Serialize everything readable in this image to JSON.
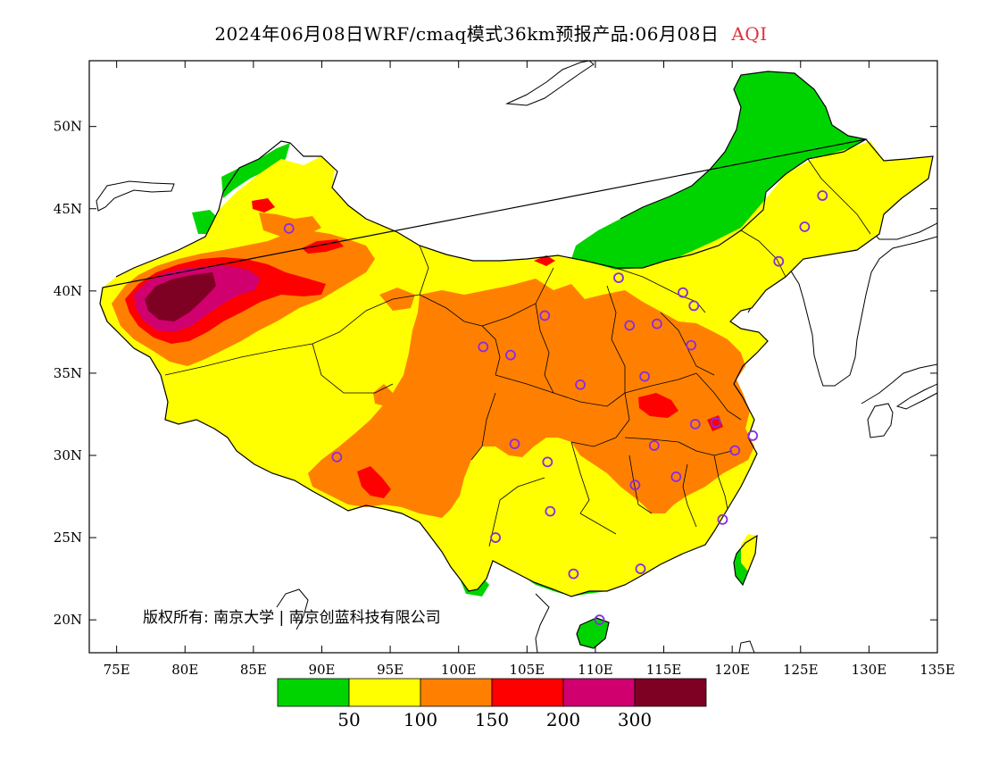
{
  "title": {
    "main": "2024年06月08日WRF/cmaq模式36km预报产品:06月08日",
    "variable": "AQI"
  },
  "copyright": "版权所有: 南京大学 | 南京创蓝科技有限公司",
  "axes": {
    "lon_ticks": [
      "75E",
      "80E",
      "85E",
      "90E",
      "95E",
      "100E",
      "105E",
      "110E",
      "115E",
      "120E",
      "125E",
      "130E",
      "135E"
    ],
    "lon_values": [
      75,
      80,
      85,
      90,
      95,
      100,
      105,
      110,
      115,
      120,
      125,
      130,
      135
    ],
    "lat_ticks": [
      "20N",
      "25N",
      "30N",
      "35N",
      "40N",
      "45N",
      "50N"
    ],
    "lat_values": [
      20,
      25,
      30,
      35,
      40,
      45,
      50
    ],
    "lon_range": [
      73,
      135
    ],
    "lat_range": [
      18,
      54
    ]
  },
  "legend": {
    "labels": [
      "50",
      "100",
      "150",
      "200",
      "300"
    ],
    "colors": [
      "#00d400",
      "#ffff00",
      "#ff8000",
      "#ff0000",
      "#d0006e",
      "#7e0023"
    ]
  },
  "colors": {
    "good": "#00d400",
    "moderate": "#ffff00",
    "usg": "#ff8000",
    "unhealthy": "#ff0000",
    "very_unhealthy": "#d0006e",
    "hazardous": "#7e0023",
    "marker": "#8a2be2"
  },
  "stations": [
    [
      87.6,
      43.8
    ],
    [
      91.1,
      29.9
    ],
    [
      101.8,
      36.6
    ],
    [
      103.8,
      36.1
    ],
    [
      106.3,
      38.5
    ],
    [
      104.1,
      30.7
    ],
    [
      106.5,
      29.6
    ],
    [
      106.7,
      26.6
    ],
    [
      102.7,
      25.0
    ],
    [
      108.4,
      22.8
    ],
    [
      110.3,
      20.0
    ],
    [
      113.3,
      23.1
    ],
    [
      111.7,
      40.8
    ],
    [
      112.5,
      37.9
    ],
    [
      108.9,
      34.3
    ],
    [
      113.6,
      34.8
    ],
    [
      114.5,
      38.0
    ],
    [
      116.4,
      39.9
    ],
    [
      117.2,
      39.1
    ],
    [
      117.0,
      36.7
    ],
    [
      114.3,
      30.6
    ],
    [
      112.9,
      28.2
    ],
    [
      115.9,
      28.7
    ],
    [
      117.3,
      31.9
    ],
    [
      118.8,
      32.0
    ],
    [
      120.2,
      30.3
    ],
    [
      121.5,
      31.2
    ],
    [
      119.3,
      26.1
    ],
    [
      123.4,
      41.8
    ],
    [
      125.3,
      43.9
    ],
    [
      126.6,
      45.8
    ]
  ]
}
